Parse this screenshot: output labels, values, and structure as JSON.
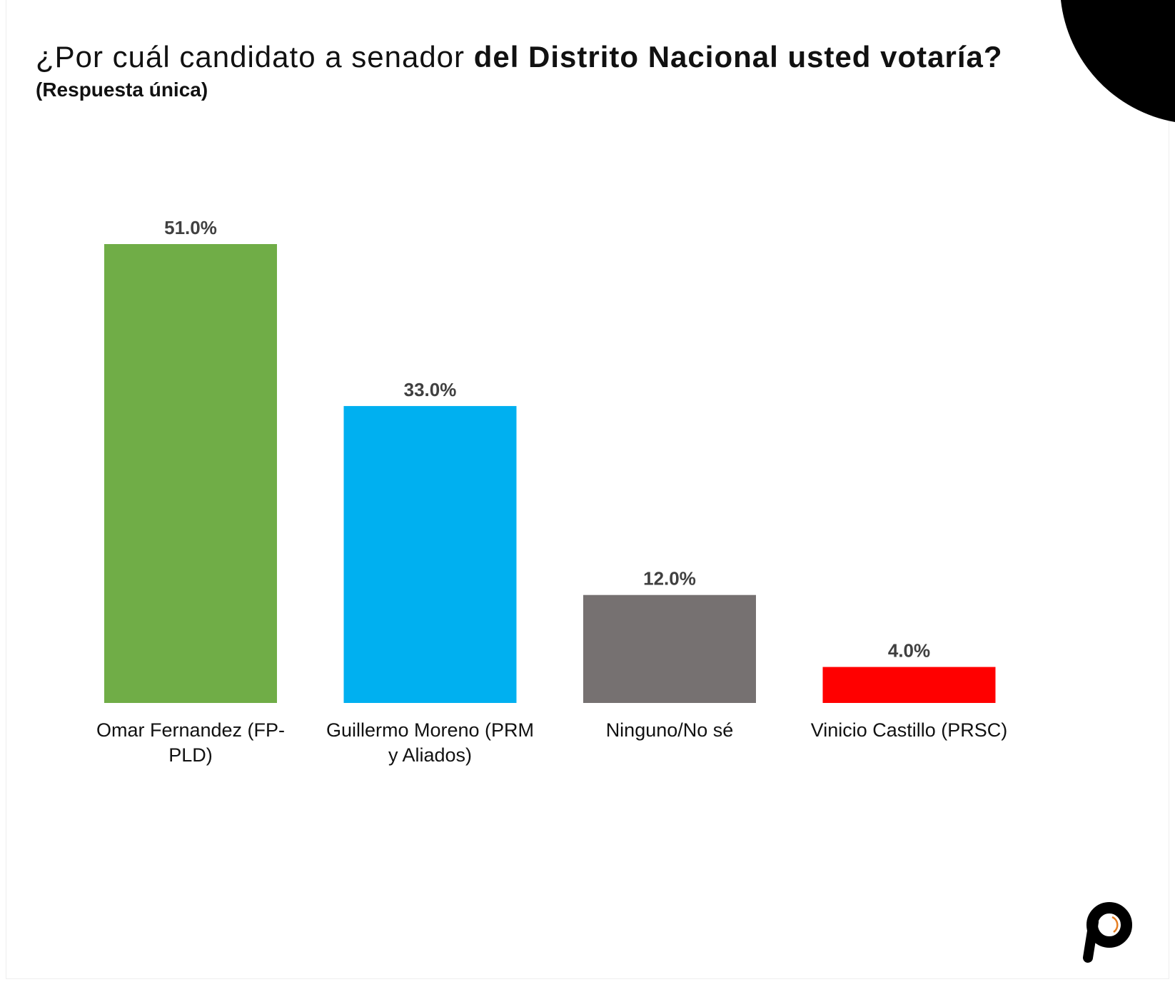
{
  "title_regular": "¿Por cuál candidato a senador ",
  "title_bold": "del Distrito Nacional usted votaría?",
  "subtitle": "(Respuesta única)",
  "logo": {
    "text": "p",
    "icon": "brand-p-logo-icon"
  },
  "chart_data": {
    "type": "bar",
    "title": "¿Por cuál candidato a senador del Distrito Nacional usted votaría?",
    "subtitle": "(Respuesta única)",
    "categories": [
      [
        "Omar Fernandez (FP-",
        "PLD)"
      ],
      [
        "Guillermo Moreno (PRM",
        "y Aliados)"
      ],
      [
        "Ninguno/No sé"
      ],
      [
        "Vinicio Castillo (PRSC)"
      ]
    ],
    "values": [
      51.0,
      33.0,
      12.0,
      4.0
    ],
    "value_labels": [
      "51.0%",
      "33.0%",
      "12.0%",
      "4.0%"
    ],
    "colors": [
      "#70AD47",
      "#00B0F0",
      "#767171",
      "#FF0000"
    ],
    "unit": "%",
    "ylim": [
      0,
      51
    ],
    "grid": false,
    "legend": "none"
  }
}
